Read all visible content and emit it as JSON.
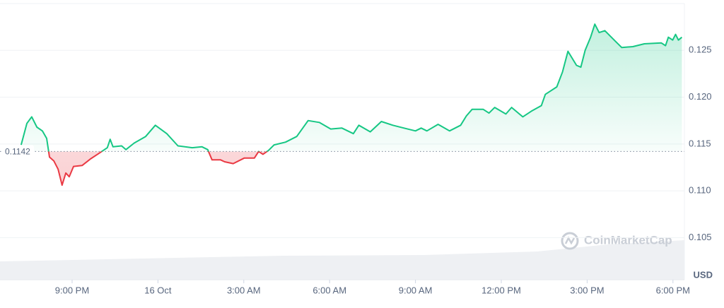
{
  "chart_data": {
    "type": "line",
    "watermark": "CoinMarketCap",
    "currency": "USD",
    "reference": 0.1142,
    "up_color": "#16c784",
    "down_color": "#ea3943",
    "grid": true,
    "x": [
      19.22,
      19.42,
      19.59,
      19.77,
      19.96,
      20.11,
      20.21,
      20.36,
      20.51,
      20.65,
      20.78,
      20.9,
      21.05,
      21.35,
      21.64,
      21.94,
      22.23,
      22.33,
      22.43,
      22.73,
      22.88,
      23.17,
      23.57,
      23.91,
      24.31,
      24.7,
      25.2,
      25.54,
      25.74,
      25.89,
      26.19,
      26.33,
      26.63,
      27.02,
      27.37,
      27.52,
      27.67,
      27.86,
      28.06,
      28.46,
      28.85,
      29.25,
      29.64,
      30.04,
      30.43,
      30.83,
      31.02,
      31.42,
      31.81,
      32.21,
      32.6,
      33.0,
      33.2,
      33.4,
      33.79,
      34.19,
      34.58,
      34.78,
      34.98,
      35.37,
      35.57,
      35.77,
      36.16,
      36.36,
      36.75,
      37.05,
      37.4,
      37.54,
      37.94,
      38.14,
      38.33,
      38.63,
      38.78,
      38.93,
      39.12,
      39.27,
      39.42,
      39.62,
      40.01,
      40.21,
      40.6,
      41.0,
      41.59,
      41.74,
      41.84,
      41.99,
      42.09,
      42.19,
      42.31
    ],
    "series": [
      {
        "values": [
          0.1149,
          0.1172,
          0.1179,
          0.1168,
          0.1164,
          0.1156,
          0.1136,
          0.1132,
          0.1123,
          0.1106,
          0.1119,
          0.1115,
          0.1126,
          0.1127,
          0.1134,
          0.114,
          0.1146,
          0.1155,
          0.1147,
          0.1148,
          0.1144,
          0.1151,
          0.1158,
          0.117,
          0.1161,
          0.1148,
          0.1146,
          0.1147,
          0.1144,
          0.1133,
          0.1133,
          0.1131,
          0.1129,
          0.1135,
          0.1135,
          0.1142,
          0.1139,
          0.1143,
          0.1149,
          0.1152,
          0.1158,
          0.1175,
          0.1173,
          0.1166,
          0.1167,
          0.1161,
          0.117,
          0.1163,
          0.1174,
          0.117,
          0.1167,
          0.1164,
          0.1167,
          0.1164,
          0.1171,
          0.1164,
          0.117,
          0.118,
          0.1187,
          0.1187,
          0.1183,
          0.1189,
          0.1182,
          0.1189,
          0.1179,
          0.1185,
          0.1191,
          0.1203,
          0.1211,
          0.1227,
          0.1249,
          0.1234,
          0.1232,
          0.125,
          0.1264,
          0.1278,
          0.1269,
          0.1271,
          0.1259,
          0.1253,
          0.1254,
          0.1257,
          0.1258,
          0.1255,
          0.1264,
          0.1261,
          0.1267,
          0.1261,
          0.1264
        ]
      }
    ],
    "xlim": [
      18.48,
      42.4
    ],
    "xticks": [
      {
        "value": 21,
        "label": "9:00 PM"
      },
      {
        "value": 24,
        "label": "16 Oct"
      },
      {
        "value": 27,
        "label": "3:00 AM"
      },
      {
        "value": 30,
        "label": "6:00 AM"
      },
      {
        "value": 33,
        "label": "9:00 AM"
      },
      {
        "value": 36,
        "label": "12:00 PM"
      },
      {
        "value": 39,
        "label": "3:00 PM"
      },
      {
        "value": 42,
        "label": "6:00 PM"
      }
    ],
    "ylim": [
      0.1005,
      0.13
    ],
    "yticks": [
      0.105,
      {
        "value": 0.11,
        "label": "0.110"
      },
      0.115,
      {
        "value": 0.12,
        "label": "0.120"
      },
      0.125
    ]
  }
}
